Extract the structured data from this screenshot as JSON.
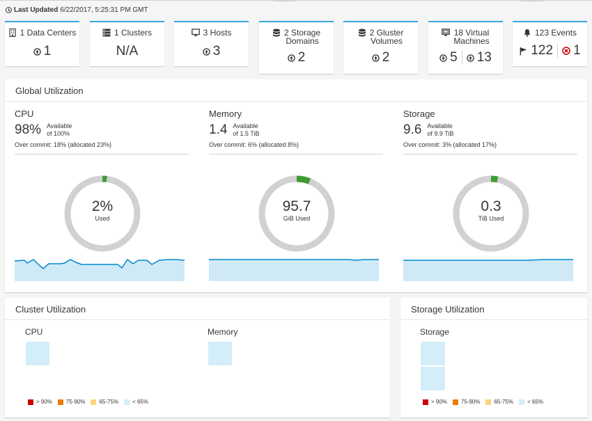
{
  "header": {
    "last_updated_label": "Last Updated",
    "last_updated_value": "6/22/2017, 5:25:31 PM GMT"
  },
  "cards": {
    "datacenters": {
      "title": "1 Data Centers",
      "up": "1"
    },
    "clusters": {
      "title": "1 Clusters",
      "value": "N/A"
    },
    "hosts": {
      "title": "3 Hosts",
      "up": "3"
    },
    "storage_domains": {
      "title_line1": "2 Storage",
      "title_line2": "Domains",
      "up": "2"
    },
    "gluster": {
      "title_line1": "2 Gluster",
      "title_line2": "Volumes",
      "up": "2"
    },
    "vms": {
      "title_line1": "18 Virtual",
      "title_line2": "Machines",
      "down": "5",
      "up": "13"
    },
    "events": {
      "title": "123 Events",
      "flags": "122",
      "errors": "1"
    }
  },
  "global": {
    "title": "Global Utilization",
    "cpu": {
      "label": "CPU",
      "available_value": "98%",
      "available_label": "Available",
      "of_label": "of 100%",
      "overcommit": "Over commit: 18% (allocated 23%)",
      "used_value": "2%",
      "used_label": "Used",
      "used_fraction": 0.02
    },
    "memory": {
      "label": "Memory",
      "available_value": "1.4",
      "available_label": "Available",
      "of_label": "of 1.5 TiB",
      "overcommit": "Over commit: 6% (allocated 8%)",
      "used_value": "95.7",
      "used_label": "GiB Used",
      "used_fraction": 0.06
    },
    "storage": {
      "label": "Storage",
      "available_value": "9.6",
      "available_label": "Available",
      "of_label": "of 9.9 TiB",
      "overcommit": "Over commit: 3% (allocated 17%)",
      "used_value": "0.3",
      "used_label": "TiB Used",
      "used_fraction": 0.03
    }
  },
  "cluster": {
    "title": "Cluster Utilization",
    "cpu_label": "CPU",
    "memory_label": "Memory"
  },
  "storage_util": {
    "title": "Storage Utilization",
    "storage_label": "Storage"
  },
  "legend": {
    "gt90": "> 90%",
    "r75": "75-90%",
    "r65": "65-75%",
    "lt65": "< 65%"
  },
  "colors": {
    "accent": "#39a5dc",
    "used": "#3f9c35",
    "unused": "#d1d1d1",
    "spark_line": "#0088ce",
    "spark_fill": "#cfe9f7",
    "heat_gt90": "#cc0000",
    "heat_75": "#ec7a08",
    "heat_65": "#f9d67a",
    "heat_lt65": "#d4eef9",
    "error": "#cc0000"
  }
}
